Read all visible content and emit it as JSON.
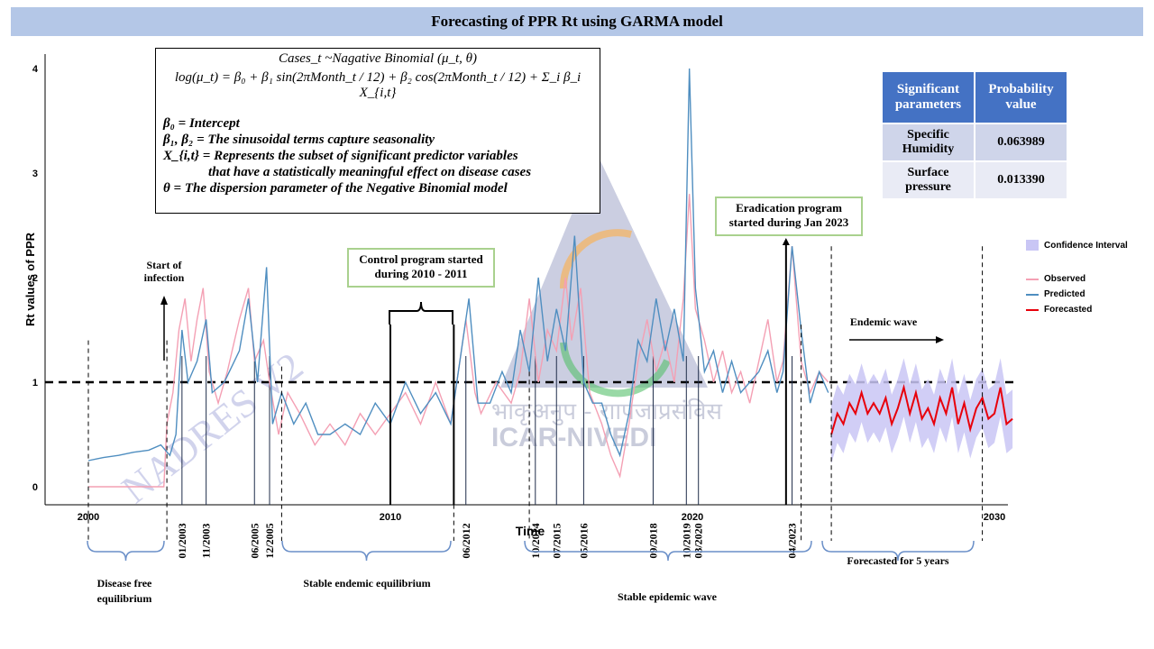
{
  "title": "Forecasting of PPR Rt using GARMA model",
  "formula": {
    "line1": "Cases_t ~Nagative Binomial (μ_t, θ)",
    "line2": "log(μ_t) = β₀ + β₁ sin(2πMonth_t / 12) + β₂ cos(2πMonth_t / 12) + Σ_i β_i X_{i,t}",
    "def1": "β₀ = Intercept",
    "def2": "β₁, β₂ = The sinusoidal terms capture seasonality",
    "def3a": "X_{i,t} = Represents the subset of significant predictor variables",
    "def3b": "that have a statistically meaningful effect on disease cases",
    "def4": "θ = The dispersion parameter of the Negative Binomial model"
  },
  "params_table": {
    "headers": [
      "Significant parameters",
      "Probability value"
    ],
    "rows": [
      [
        "Specific Humidity",
        "0.063989"
      ],
      [
        "Surface pressure",
        "0.013390"
      ]
    ]
  },
  "callouts": {
    "control": "Control program started during 2010 - 2011",
    "eradication": "Eradication program started during Jan 2023",
    "start_infection": "Start of infection",
    "endemic_wave": "Endemic wave"
  },
  "legend": {
    "ci": "Confidence Interval",
    "observed": "Observed",
    "predicted": "Predicted",
    "forecasted": "Forecasted"
  },
  "colors": {
    "observed": "#f4a0b4",
    "predicted": "#4f8ec0",
    "forecasted": "#e8000b",
    "ci": "#c9c6f5",
    "header_bg": "#b4c7e7",
    "table_header": "#4472c4"
  },
  "periods": [
    {
      "label": "Disease free equilibrium"
    },
    {
      "label": "Stable endemic equilibrium"
    },
    {
      "label": "Stable epidemic wave"
    },
    {
      "label": "Forecasted for 5 years"
    }
  ],
  "watermark": {
    "text1": "NADRES V2",
    "text2": "भाकृअनुप - राापजाप्रसंविस",
    "text3": "ICAR-NIVEDI"
  },
  "chart_data": {
    "type": "line",
    "ylabel": "Rt values of PPR",
    "xlabel": "Time",
    "xlim": [
      2000,
      2030
    ],
    "ylim": [
      0,
      4
    ],
    "x_ticks": [
      "2000",
      "2010",
      "2020",
      "2030"
    ],
    "y_ticks": [
      "0",
      "1",
      "2",
      "3",
      "4"
    ],
    "threshold": 1,
    "event_dates": [
      "01/2003",
      "11/2003",
      "06/2005",
      "12/2005",
      "06/2012",
      "10/2014",
      "07/2015",
      "05/2016",
      "09/2018",
      "10/2019",
      "03/2020",
      "04/2023"
    ],
    "series": [
      {
        "name": "Observed",
        "points": [
          [
            2000,
            0
          ],
          [
            2002.5,
            0
          ],
          [
            2002.6,
            0.6
          ],
          [
            2002.8,
            0.9
          ],
          [
            2003,
            1.5
          ],
          [
            2003.2,
            1.8
          ],
          [
            2003.4,
            1.2
          ],
          [
            2003.6,
            1.6
          ],
          [
            2003.8,
            1.9
          ],
          [
            2004,
            1.1
          ],
          [
            2004.3,
            0.8
          ],
          [
            2004.6,
            1.1
          ],
          [
            2005,
            1.6
          ],
          [
            2005.3,
            1.9
          ],
          [
            2005.5,
            1.2
          ],
          [
            2005.8,
            1.4
          ],
          [
            2006,
            1.0
          ],
          [
            2006.3,
            0.5
          ],
          [
            2006.6,
            0.9
          ],
          [
            2007,
            0.7
          ],
          [
            2007.5,
            0.4
          ],
          [
            2008,
            0.6
          ],
          [
            2008.5,
            0.4
          ],
          [
            2009,
            0.7
          ],
          [
            2009.5,
            0.5
          ],
          [
            2010,
            0.7
          ],
          [
            2010.5,
            0.9
          ],
          [
            2011,
            0.6
          ],
          [
            2011.5,
            1.0
          ],
          [
            2012,
            0.6
          ],
          [
            2012.3,
            1.2
          ],
          [
            2012.5,
            1.6
          ],
          [
            2012.8,
            0.9
          ],
          [
            2013,
            0.7
          ],
          [
            2013.5,
            1.0
          ],
          [
            2014,
            0.8
          ],
          [
            2014.3,
            1.1
          ],
          [
            2014.6,
            1.8
          ],
          [
            2014.9,
            1.0
          ],
          [
            2015.2,
            1.5
          ],
          [
            2015.5,
            1.3
          ],
          [
            2015.8,
            2.0
          ],
          [
            2016,
            1.4
          ],
          [
            2016.3,
            1.9
          ],
          [
            2016.6,
            0.9
          ],
          [
            2017,
            0.6
          ],
          [
            2017.3,
            0.3
          ],
          [
            2017.6,
            0.1
          ],
          [
            2017.9,
            0.6
          ],
          [
            2018.2,
            1.2
          ],
          [
            2018.5,
            1.6
          ],
          [
            2018.8,
            1.1
          ],
          [
            2019.1,
            1.4
          ],
          [
            2019.4,
            1.0
          ],
          [
            2019.7,
            1.8
          ],
          [
            2019.9,
            2.8
          ],
          [
            2020.1,
            1.7
          ],
          [
            2020.4,
            1.4
          ],
          [
            2020.7,
            1.0
          ],
          [
            2021,
            1.3
          ],
          [
            2021.3,
            0.9
          ],
          [
            2021.6,
            1.1
          ],
          [
            2021.9,
            0.8
          ],
          [
            2022.2,
            1.2
          ],
          [
            2022.5,
            1.6
          ],
          [
            2022.8,
            1.0
          ],
          [
            2023,
            1.2
          ],
          [
            2023.3,
            2.3
          ],
          [
            2023.6,
            1.2
          ],
          [
            2023.9,
            0.9
          ],
          [
            2024.2,
            1.1
          ],
          [
            2024.5,
            1.0
          ]
        ]
      },
      {
        "name": "Predicted",
        "points": [
          [
            2000,
            0.25
          ],
          [
            2000.5,
            0.28
          ],
          [
            2001,
            0.3
          ],
          [
            2001.5,
            0.33
          ],
          [
            2002,
            0.35
          ],
          [
            2002.4,
            0.4
          ],
          [
            2002.7,
            0.3
          ],
          [
            2002.9,
            0.5
          ],
          [
            2003.1,
            1.5
          ],
          [
            2003.3,
            1.0
          ],
          [
            2003.6,
            1.2
          ],
          [
            2003.9,
            1.6
          ],
          [
            2004.1,
            0.9
          ],
          [
            2004.5,
            1.0
          ],
          [
            2005,
            1.3
          ],
          [
            2005.3,
            1.8
          ],
          [
            2005.6,
            1.0
          ],
          [
            2005.9,
            2.1
          ],
          [
            2006.1,
            0.6
          ],
          [
            2006.4,
            0.9
          ],
          [
            2006.8,
            0.6
          ],
          [
            2007.2,
            0.8
          ],
          [
            2007.6,
            0.5
          ],
          [
            2008,
            0.5
          ],
          [
            2008.5,
            0.6
          ],
          [
            2009,
            0.5
          ],
          [
            2009.5,
            0.8
          ],
          [
            2010,
            0.6
          ],
          [
            2010.5,
            1.0
          ],
          [
            2011,
            0.7
          ],
          [
            2011.5,
            0.9
          ],
          [
            2012,
            0.6
          ],
          [
            2012.4,
            1.4
          ],
          [
            2012.6,
            1.8
          ],
          [
            2012.9,
            0.8
          ],
          [
            2013.3,
            0.8
          ],
          [
            2013.7,
            1.1
          ],
          [
            2014,
            0.9
          ],
          [
            2014.3,
            1.5
          ],
          [
            2014.6,
            1.1
          ],
          [
            2014.9,
            2.0
          ],
          [
            2015.2,
            1.2
          ],
          [
            2015.5,
            1.7
          ],
          [
            2015.8,
            1.3
          ],
          [
            2016.1,
            2.4
          ],
          [
            2016.4,
            1.0
          ],
          [
            2016.7,
            0.8
          ],
          [
            2017,
            0.8
          ],
          [
            2017.3,
            0.5
          ],
          [
            2017.6,
            0.3
          ],
          [
            2017.9,
            0.7
          ],
          [
            2018.2,
            1.4
          ],
          [
            2018.5,
            1.2
          ],
          [
            2018.8,
            1.8
          ],
          [
            2019.1,
            1.3
          ],
          [
            2019.4,
            1.7
          ],
          [
            2019.7,
            1.2
          ],
          [
            2019.9,
            4.0
          ],
          [
            2020.1,
            1.9
          ],
          [
            2020.4,
            1.1
          ],
          [
            2020.7,
            1.3
          ],
          [
            2021,
            0.9
          ],
          [
            2021.3,
            1.2
          ],
          [
            2021.6,
            0.9
          ],
          [
            2021.9,
            1.0
          ],
          [
            2022.2,
            1.1
          ],
          [
            2022.5,
            1.3
          ],
          [
            2022.8,
            0.9
          ],
          [
            2023,
            1.1
          ],
          [
            2023.3,
            2.3
          ],
          [
            2023.6,
            1.5
          ],
          [
            2023.9,
            0.8
          ],
          [
            2024.2,
            1.1
          ],
          [
            2024.5,
            0.9
          ]
        ]
      },
      {
        "name": "Forecasted",
        "points": [
          [
            2024.6,
            0.5
          ],
          [
            2024.8,
            0.7
          ],
          [
            2025,
            0.6
          ],
          [
            2025.2,
            0.8
          ],
          [
            2025.4,
            0.7
          ],
          [
            2025.6,
            0.9
          ],
          [
            2025.8,
            0.7
          ],
          [
            2026,
            0.8
          ],
          [
            2026.2,
            0.7
          ],
          [
            2026.4,
            0.85
          ],
          [
            2026.6,
            0.6
          ],
          [
            2026.8,
            0.75
          ],
          [
            2027,
            0.95
          ],
          [
            2027.2,
            0.7
          ],
          [
            2027.4,
            0.9
          ],
          [
            2027.6,
            0.65
          ],
          [
            2027.8,
            0.75
          ],
          [
            2028,
            0.6
          ],
          [
            2028.2,
            0.85
          ],
          [
            2028.4,
            0.7
          ],
          [
            2028.6,
            0.95
          ],
          [
            2028.8,
            0.6
          ],
          [
            2029,
            0.8
          ],
          [
            2029.2,
            0.55
          ],
          [
            2029.4,
            0.75
          ],
          [
            2029.6,
            0.85
          ],
          [
            2029.8,
            0.65
          ],
          [
            2030,
            0.7
          ],
          [
            2030.2,
            0.95
          ],
          [
            2030.4,
            0.6
          ],
          [
            2030.6,
            0.65
          ]
        ]
      }
    ],
    "ci_band_width": 0.28,
    "legend_position": "right"
  }
}
